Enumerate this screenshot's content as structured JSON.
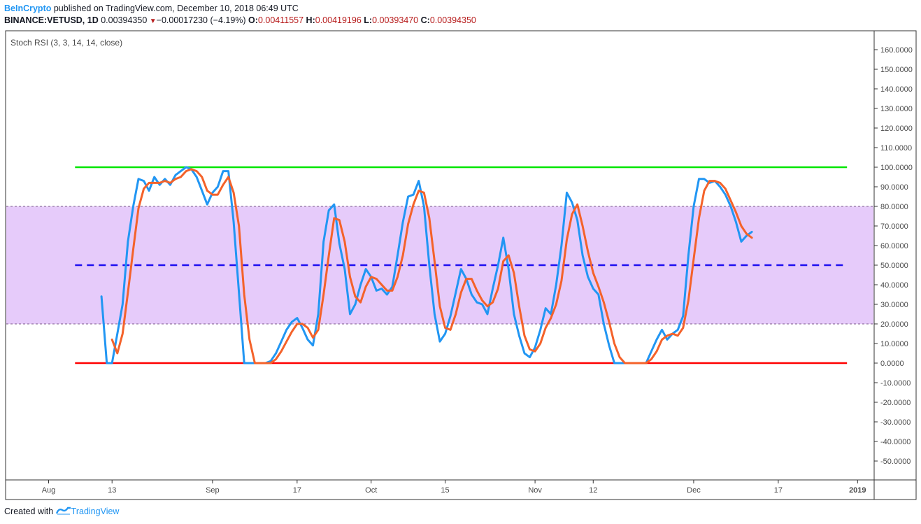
{
  "header": {
    "brand": "BeInCrypto",
    "published": "published on TradingView.com, December 10, 2018 06:49 UTC",
    "symbol": "BINANCE:VETUSD, 1D",
    "last": "0.00394350",
    "change_arrow": "▼",
    "change": "−0.00017230 (−4.19%)",
    "o_label": "O:",
    "o_value": "0.00411557",
    "h_label": "H:",
    "h_value": "0.00419196",
    "l_label": "L:",
    "l_value": "0.00393470",
    "c_label": "C:",
    "c_value": "0.00394350"
  },
  "footer": {
    "created_with": "Created with",
    "brand": "TradingView"
  },
  "colors": {
    "k_line": "#2196f3",
    "d_line": "#f4622a",
    "band": "#e6cbfa",
    "upper": "#00e600",
    "lower": "#ff0000",
    "mid": "#1e0ff0",
    "axis": "#333333"
  },
  "chart_data": {
    "type": "line",
    "indicator_label": "Stoch RSI (3, 3, 14, 14, close)",
    "ylim": [
      -60,
      170
    ],
    "y_ticks": [
      160,
      150,
      140,
      130,
      120,
      110,
      100,
      90,
      80,
      70,
      60,
      50,
      40,
      30,
      20,
      10,
      0,
      -10,
      -20,
      -30,
      -40,
      -50
    ],
    "y_tick_labels": [
      "160.0000",
      "150.0000",
      "140.0000",
      "130.0000",
      "120.0000",
      "110.0000",
      "100.0000",
      "90.0000",
      "80.0000",
      "70.0000",
      "60.0000",
      "50.0000",
      "40.0000",
      "30.0000",
      "20.0000",
      "10.0000",
      "0.0000",
      "-10.0000",
      "-20.0000",
      "-30.0000",
      "-40.0000",
      "-50.0000"
    ],
    "x_start": "2018-07-24",
    "x_end": "2019-01-04",
    "x_ticks": [
      {
        "date": "2018-08-01",
        "label": "Aug"
      },
      {
        "date": "2018-08-13",
        "label": "13"
      },
      {
        "date": "2018-09-01",
        "label": "Sep"
      },
      {
        "date": "2018-09-17",
        "label": "17"
      },
      {
        "date": "2018-10-01",
        "label": "Oct"
      },
      {
        "date": "2018-10-15",
        "label": "15"
      },
      {
        "date": "2018-11-01",
        "label": "Nov"
      },
      {
        "date": "2018-11-12",
        "label": "12"
      },
      {
        "date": "2018-12-01",
        "label": "Dec"
      },
      {
        "date": "2018-12-17",
        "label": "17"
      },
      {
        "date": "2019-01-01",
        "label": "2019",
        "bold": true
      }
    ],
    "levels": [
      {
        "name": "upper",
        "value": 100,
        "style": "solid"
      },
      {
        "name": "overbought",
        "value": 80,
        "style": "dotted"
      },
      {
        "name": "middle",
        "value": 50,
        "style": "dashed"
      },
      {
        "name": "oversold",
        "value": 20,
        "style": "dotted"
      },
      {
        "name": "lower",
        "value": 0,
        "style": "solid"
      }
    ],
    "level_line_start": "2018-08-06",
    "level_line_end": "2018-12-30",
    "band": [
      20,
      80
    ],
    "series": [
      {
        "key": "k",
        "color": "#2196f3",
        "points": [
          [
            "2018-08-11",
            34
          ],
          [
            "2018-08-12",
            0
          ],
          [
            "2018-08-13",
            0
          ],
          [
            "2018-08-14",
            15
          ],
          [
            "2018-08-15",
            30
          ],
          [
            "2018-08-16",
            62
          ],
          [
            "2018-08-17",
            80
          ],
          [
            "2018-08-18",
            94
          ],
          [
            "2018-08-19",
            93
          ],
          [
            "2018-08-20",
            88
          ],
          [
            "2018-08-21",
            95
          ],
          [
            "2018-08-22",
            91
          ],
          [
            "2018-08-23",
            94
          ],
          [
            "2018-08-24",
            91
          ],
          [
            "2018-08-25",
            96
          ],
          [
            "2018-08-26",
            98
          ],
          [
            "2018-08-27",
            100
          ],
          [
            "2018-08-28",
            99
          ],
          [
            "2018-08-29",
            95
          ],
          [
            "2018-08-30",
            88
          ],
          [
            "2018-08-31",
            81
          ],
          [
            "2018-09-01",
            87
          ],
          [
            "2018-09-02",
            90
          ],
          [
            "2018-09-03",
            98
          ],
          [
            "2018-09-04",
            98
          ],
          [
            "2018-09-05",
            72
          ],
          [
            "2018-09-06",
            36
          ],
          [
            "2018-09-07",
            0
          ],
          [
            "2018-09-08",
            0
          ],
          [
            "2018-09-09",
            0
          ],
          [
            "2018-09-10",
            0
          ],
          [
            "2018-09-11",
            0
          ],
          [
            "2018-09-12",
            1
          ],
          [
            "2018-09-13",
            5
          ],
          [
            "2018-09-14",
            11
          ],
          [
            "2018-09-15",
            17
          ],
          [
            "2018-09-16",
            21
          ],
          [
            "2018-09-17",
            23
          ],
          [
            "2018-09-18",
            18
          ],
          [
            "2018-09-19",
            12
          ],
          [
            "2018-09-20",
            9
          ],
          [
            "2018-09-21",
            25
          ],
          [
            "2018-09-22",
            62
          ],
          [
            "2018-09-23",
            78
          ],
          [
            "2018-09-24",
            81
          ],
          [
            "2018-09-25",
            61
          ],
          [
            "2018-09-26",
            48
          ],
          [
            "2018-09-27",
            25
          ],
          [
            "2018-09-28",
            30
          ],
          [
            "2018-09-29",
            40
          ],
          [
            "2018-09-30",
            48
          ],
          [
            "2018-10-01",
            44
          ],
          [
            "2018-10-02",
            37
          ],
          [
            "2018-10-03",
            38
          ],
          [
            "2018-10-04",
            35
          ],
          [
            "2018-10-05",
            39
          ],
          [
            "2018-10-06",
            55
          ],
          [
            "2018-10-07",
            72
          ],
          [
            "2018-10-08",
            85
          ],
          [
            "2018-10-09",
            86
          ],
          [
            "2018-10-10",
            93
          ],
          [
            "2018-10-11",
            80
          ],
          [
            "2018-10-12",
            50
          ],
          [
            "2018-10-13",
            25
          ],
          [
            "2018-10-14",
            11
          ],
          [
            "2018-10-15",
            15
          ],
          [
            "2018-10-16",
            24
          ],
          [
            "2018-10-17",
            36
          ],
          [
            "2018-10-18",
            48
          ],
          [
            "2018-10-19",
            43
          ],
          [
            "2018-10-20",
            35
          ],
          [
            "2018-10-21",
            31
          ],
          [
            "2018-10-22",
            30
          ],
          [
            "2018-10-23",
            25
          ],
          [
            "2018-10-24",
            38
          ],
          [
            "2018-10-25",
            50
          ],
          [
            "2018-10-26",
            64
          ],
          [
            "2018-10-27",
            48
          ],
          [
            "2018-10-28",
            25
          ],
          [
            "2018-10-29",
            14
          ],
          [
            "2018-10-30",
            5
          ],
          [
            "2018-10-31",
            3
          ],
          [
            "2018-11-01",
            8
          ],
          [
            "2018-11-02",
            17
          ],
          [
            "2018-11-03",
            28
          ],
          [
            "2018-11-04",
            25
          ],
          [
            "2018-11-05",
            40
          ],
          [
            "2018-11-06",
            60
          ],
          [
            "2018-11-07",
            87
          ],
          [
            "2018-11-08",
            82
          ],
          [
            "2018-11-09",
            73
          ],
          [
            "2018-11-10",
            55
          ],
          [
            "2018-11-11",
            44
          ],
          [
            "2018-11-12",
            38
          ],
          [
            "2018-11-13",
            35
          ],
          [
            "2018-11-14",
            20
          ],
          [
            "2018-11-15",
            9
          ],
          [
            "2018-11-16",
            0
          ],
          [
            "2018-11-17",
            0
          ],
          [
            "2018-11-18",
            0
          ],
          [
            "2018-11-19",
            0
          ],
          [
            "2018-11-20",
            0
          ],
          [
            "2018-11-21",
            0
          ],
          [
            "2018-11-22",
            0
          ],
          [
            "2018-11-23",
            6
          ],
          [
            "2018-11-24",
            12
          ],
          [
            "2018-11-25",
            17
          ],
          [
            "2018-11-26",
            12
          ],
          [
            "2018-11-27",
            15
          ],
          [
            "2018-11-28",
            17
          ],
          [
            "2018-11-29",
            24
          ],
          [
            "2018-11-30",
            55
          ],
          [
            "2018-12-01",
            80
          ],
          [
            "2018-12-02",
            94
          ],
          [
            "2018-12-03",
            94
          ],
          [
            "2018-12-04",
            92
          ],
          [
            "2018-12-05",
            93
          ],
          [
            "2018-12-06",
            90
          ],
          [
            "2018-12-07",
            86
          ],
          [
            "2018-12-08",
            80
          ],
          [
            "2018-12-09",
            72
          ],
          [
            "2018-12-10",
            62
          ],
          [
            "2018-12-11",
            65
          ],
          [
            "2018-12-12",
            67
          ]
        ]
      },
      {
        "key": "d",
        "color": "#f4622a",
        "points": [
          [
            "2018-08-13",
            12
          ],
          [
            "2018-08-14",
            5
          ],
          [
            "2018-08-15",
            15
          ],
          [
            "2018-08-16",
            36
          ],
          [
            "2018-08-17",
            58
          ],
          [
            "2018-08-18",
            79
          ],
          [
            "2018-08-19",
            89
          ],
          [
            "2018-08-20",
            92
          ],
          [
            "2018-08-21",
            92
          ],
          [
            "2018-08-22",
            92
          ],
          [
            "2018-08-23",
            93
          ],
          [
            "2018-08-24",
            92
          ],
          [
            "2018-08-25",
            94
          ],
          [
            "2018-08-26",
            95
          ],
          [
            "2018-08-27",
            98
          ],
          [
            "2018-08-28",
            99
          ],
          [
            "2018-08-29",
            98
          ],
          [
            "2018-08-30",
            95
          ],
          [
            "2018-08-31",
            88
          ],
          [
            "2018-09-01",
            86
          ],
          [
            "2018-09-02",
            86
          ],
          [
            "2018-09-03",
            91
          ],
          [
            "2018-09-04",
            95
          ],
          [
            "2018-09-05",
            87
          ],
          [
            "2018-09-06",
            70
          ],
          [
            "2018-09-07",
            35
          ],
          [
            "2018-09-08",
            12
          ],
          [
            "2018-09-09",
            0
          ],
          [
            "2018-09-10",
            0
          ],
          [
            "2018-09-11",
            0
          ],
          [
            "2018-09-12",
            0
          ],
          [
            "2018-09-13",
            2
          ],
          [
            "2018-09-14",
            6
          ],
          [
            "2018-09-15",
            11
          ],
          [
            "2018-09-16",
            16
          ],
          [
            "2018-09-17",
            20
          ],
          [
            "2018-09-18",
            20
          ],
          [
            "2018-09-19",
            18
          ],
          [
            "2018-09-20",
            13
          ],
          [
            "2018-09-21",
            17
          ],
          [
            "2018-09-22",
            35
          ],
          [
            "2018-09-23",
            55
          ],
          [
            "2018-09-24",
            74
          ],
          [
            "2018-09-25",
            73
          ],
          [
            "2018-09-26",
            62
          ],
          [
            "2018-09-27",
            44
          ],
          [
            "2018-09-28",
            34
          ],
          [
            "2018-09-29",
            31
          ],
          [
            "2018-09-30",
            39
          ],
          [
            "2018-10-01",
            44
          ],
          [
            "2018-10-02",
            43
          ],
          [
            "2018-10-03",
            40
          ],
          [
            "2018-10-04",
            37
          ],
          [
            "2018-10-05",
            37
          ],
          [
            "2018-10-06",
            44
          ],
          [
            "2018-10-07",
            55
          ],
          [
            "2018-10-08",
            71
          ],
          [
            "2018-10-09",
            81
          ],
          [
            "2018-10-10",
            88
          ],
          [
            "2018-10-11",
            87
          ],
          [
            "2018-10-12",
            74
          ],
          [
            "2018-10-13",
            52
          ],
          [
            "2018-10-14",
            29
          ],
          [
            "2018-10-15",
            18
          ],
          [
            "2018-10-16",
            17
          ],
          [
            "2018-10-17",
            25
          ],
          [
            "2018-10-18",
            36
          ],
          [
            "2018-10-19",
            43
          ],
          [
            "2018-10-20",
            43
          ],
          [
            "2018-10-21",
            37
          ],
          [
            "2018-10-22",
            32
          ],
          [
            "2018-10-23",
            29
          ],
          [
            "2018-10-24",
            31
          ],
          [
            "2018-10-25",
            38
          ],
          [
            "2018-10-26",
            52
          ],
          [
            "2018-10-27",
            55
          ],
          [
            "2018-10-28",
            46
          ],
          [
            "2018-10-29",
            29
          ],
          [
            "2018-10-30",
            14
          ],
          [
            "2018-10-31",
            7
          ],
          [
            "2018-11-01",
            6
          ],
          [
            "2018-11-02",
            10
          ],
          [
            "2018-11-03",
            18
          ],
          [
            "2018-11-04",
            23
          ],
          [
            "2018-11-05",
            30
          ],
          [
            "2018-11-06",
            42
          ],
          [
            "2018-11-07",
            63
          ],
          [
            "2018-11-08",
            76
          ],
          [
            "2018-11-09",
            81
          ],
          [
            "2018-11-10",
            70
          ],
          [
            "2018-11-11",
            57
          ],
          [
            "2018-11-12",
            46
          ],
          [
            "2018-11-13",
            39
          ],
          [
            "2018-11-14",
            31
          ],
          [
            "2018-11-15",
            21
          ],
          [
            "2018-11-16",
            10
          ],
          [
            "2018-11-17",
            3
          ],
          [
            "2018-11-18",
            0
          ],
          [
            "2018-11-19",
            0
          ],
          [
            "2018-11-20",
            0
          ],
          [
            "2018-11-21",
            0
          ],
          [
            "2018-11-22",
            0
          ],
          [
            "2018-11-23",
            2
          ],
          [
            "2018-11-24",
            6
          ],
          [
            "2018-11-25",
            12
          ],
          [
            "2018-11-26",
            14
          ],
          [
            "2018-11-27",
            15
          ],
          [
            "2018-11-28",
            14
          ],
          [
            "2018-11-29",
            18
          ],
          [
            "2018-11-30",
            32
          ],
          [
            "2018-12-01",
            53
          ],
          [
            "2018-12-02",
            74
          ],
          [
            "2018-12-03",
            88
          ],
          [
            "2018-12-04",
            93
          ],
          [
            "2018-12-05",
            93
          ],
          [
            "2018-12-06",
            92
          ],
          [
            "2018-12-07",
            89
          ],
          [
            "2018-12-08",
            83
          ],
          [
            "2018-12-09",
            77
          ],
          [
            "2018-12-10",
            70
          ],
          [
            "2018-12-11",
            66
          ],
          [
            "2018-12-12",
            64
          ]
        ]
      }
    ]
  }
}
